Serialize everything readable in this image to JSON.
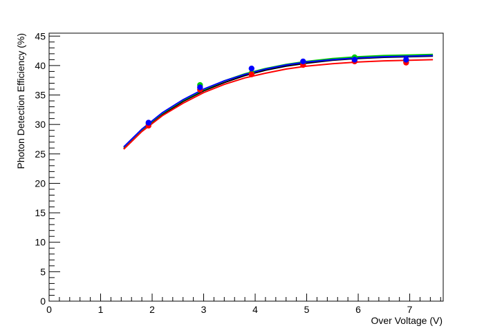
{
  "chart_data": {
    "type": "scatter",
    "title": "",
    "xlabel": "Over Voltage (V)",
    "ylabel": "Photon Detection Efficiency (%)",
    "xlim": [
      0,
      7.65
    ],
    "ylim": [
      0,
      45.5
    ],
    "x_ticks": [
      0,
      1,
      2,
      3,
      4,
      5,
      6,
      7
    ],
    "y_ticks": [
      0,
      5,
      10,
      15,
      20,
      25,
      30,
      35,
      40,
      45
    ],
    "grid": false,
    "legend": "none",
    "series": [
      {
        "color": "#000000",
        "points_x": [],
        "points_y": [],
        "fit_x": [
          1.45,
          1.8,
          2.2,
          2.6,
          3.0,
          3.4,
          3.8,
          4.2,
          4.6,
          5.0,
          5.5,
          6.0,
          6.5,
          7.0,
          7.45
        ],
        "fit_y": [
          25.9,
          28.9,
          31.7,
          33.9,
          35.7,
          37.1,
          38.3,
          39.2,
          39.9,
          40.4,
          40.9,
          41.2,
          41.4,
          41.5,
          41.6
        ]
      },
      {
        "color": "#00cc00",
        "points_x": [
          1.93,
          2.93,
          3.93,
          4.93,
          5.93,
          6.93
        ],
        "points_y": [
          30.1,
          36.7,
          38.7,
          40.4,
          41.4,
          40.8
        ],
        "fit_x": [
          1.45,
          1.8,
          2.2,
          2.6,
          3.0,
          3.4,
          3.8,
          4.2,
          4.6,
          5.0,
          5.5,
          6.0,
          6.5,
          7.0,
          7.45
        ],
        "fit_y": [
          26.1,
          29.1,
          31.9,
          34.1,
          35.9,
          37.4,
          38.6,
          39.5,
          40.2,
          40.7,
          41.2,
          41.5,
          41.7,
          41.8,
          41.9
        ]
      },
      {
        "color": "#ff0000",
        "points_x": [
          1.93,
          2.93,
          3.93,
          4.93,
          5.93,
          6.93
        ],
        "points_y": [
          29.8,
          35.9,
          38.5,
          40.1,
          40.7,
          40.5
        ],
        "fit_x": [
          1.45,
          1.8,
          2.2,
          2.6,
          3.0,
          3.4,
          3.8,
          4.2,
          4.6,
          5.0,
          5.5,
          6.0,
          6.5,
          7.0,
          7.45
        ],
        "fit_y": [
          25.8,
          28.8,
          31.5,
          33.6,
          35.4,
          36.8,
          37.9,
          38.7,
          39.4,
          39.9,
          40.3,
          40.6,
          40.8,
          40.9,
          41.0
        ]
      },
      {
        "color": "#0000ff",
        "points_x": [
          1.93,
          2.93,
          3.93,
          4.93,
          5.93,
          6.93
        ],
        "points_y": [
          30.3,
          36.3,
          39.5,
          40.7,
          41.0,
          41.0
        ],
        "fit_x": [
          1.45,
          1.8,
          2.2,
          2.6,
          3.0,
          3.4,
          3.8,
          4.2,
          4.6,
          5.0,
          5.5,
          6.0,
          6.5,
          7.0,
          7.45
        ],
        "fit_y": [
          26.2,
          29.2,
          32.0,
          34.2,
          36.0,
          37.4,
          38.5,
          39.4,
          40.1,
          40.6,
          41.0,
          41.3,
          41.5,
          41.6,
          41.7
        ]
      }
    ]
  }
}
